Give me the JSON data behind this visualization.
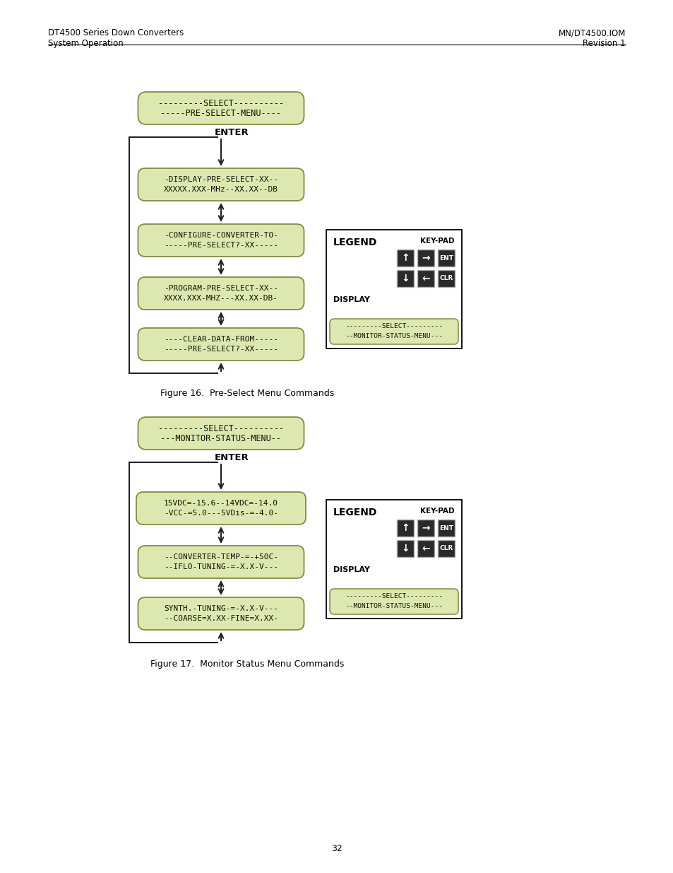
{
  "page_title_left1": "DT4500 Series Down Converters",
  "page_title_left2": "System Operation",
  "page_title_right1": "MN/DT4500.IOM",
  "page_title_right2": "Revision 1",
  "page_number": "32",
  "fig1_caption": "Figure 16.  Pre-Select Menu Commands",
  "fig2_caption": "Figure 17.  Monitor Status Menu Commands",
  "box_fill": "#dde8b0",
  "box_edge": "#888844",
  "display_box_fill": "#dde8b0",
  "display_box_edge": "#888844",
  "fig1_top_box": [
    "---------SELECT----------",
    "-----PRE-SELECT-MENU----"
  ],
  "fig1_box1": [
    "-DISPLAY-PRE-SELECT-XX--",
    "XXXXX.XXX-MHz--XX.XX--DB"
  ],
  "fig1_box2": [
    "-CONFIGURE-CONVERTER-TO-",
    "-----PRE-SELECT?-XX-----"
  ],
  "fig1_box3": [
    "-PROGRAM-PRE-SELECT-XX--",
    "XXXX.XXX-MHZ---XX.XX-DB-"
  ],
  "fig1_box4": [
    "----CLEAR-DATA-FROM-----",
    "-----PRE-SELECT?-XX-----"
  ],
  "fig2_top_box": [
    "---------SELECT----------",
    "---MONITOR-STATUS-MENU--"
  ],
  "fig2_box1": [
    "15VDC=-15.6--14VDC=-14.0",
    "-VCC-=5.0---5VDis-=-4.0-"
  ],
  "fig2_box2": [
    "--CONVERTER-TEMP-=-+50C-",
    "--IFLO-TUNING-=-X.X-V---"
  ],
  "fig2_box3": [
    "SYNTH.-TUNING-=-X.X-V---",
    "--COARSE=X.XX-FINE=X.XX-"
  ]
}
